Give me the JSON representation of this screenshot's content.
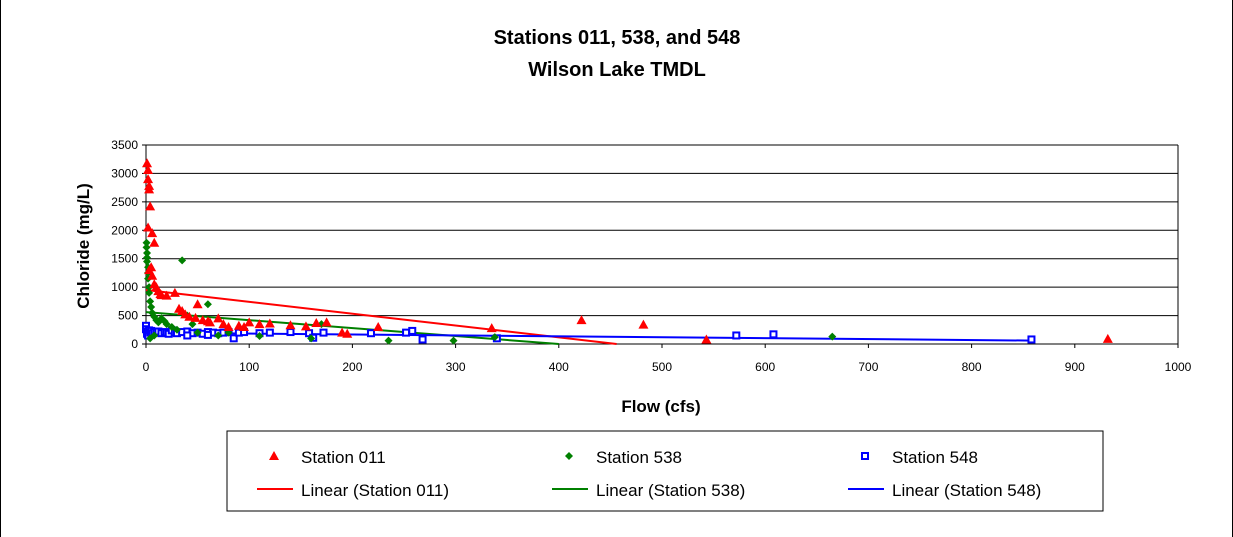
{
  "chart_data": {
    "type": "scatter",
    "title": "Stations 011, 538, and 548",
    "subtitle": "Wilson Lake TMDL",
    "xlabel": "Flow (cfs)",
    "ylabel": "Chloride (mg/L)",
    "xlim": [
      0,
      1000
    ],
    "ylim": [
      0,
      3500
    ],
    "x_ticks": [
      0,
      100,
      200,
      300,
      400,
      500,
      600,
      700,
      800,
      900,
      1000
    ],
    "y_ticks": [
      0,
      500,
      1000,
      1500,
      2000,
      2500,
      3000,
      3500
    ],
    "grid": "horizontal",
    "legend_position": "bottom",
    "series": [
      {
        "name": "Station 011",
        "marker": "triangle",
        "color": "#ff0000",
        "points": [
          [
            1,
            3180
          ],
          [
            2,
            3060
          ],
          [
            2,
            2900
          ],
          [
            3,
            2780
          ],
          [
            3,
            2720
          ],
          [
            4,
            2420
          ],
          [
            2,
            2050
          ],
          [
            6,
            1950
          ],
          [
            8,
            1780
          ],
          [
            5,
            1350
          ],
          [
            3,
            1300
          ],
          [
            6,
            1200
          ],
          [
            8,
            1050
          ],
          [
            10,
            1000
          ],
          [
            12,
            930
          ],
          [
            14,
            880
          ],
          [
            15,
            860
          ],
          [
            20,
            850
          ],
          [
            28,
            900
          ],
          [
            32,
            620
          ],
          [
            35,
            580
          ],
          [
            38,
            520
          ],
          [
            42,
            480
          ],
          [
            48,
            460
          ],
          [
            50,
            700
          ],
          [
            55,
            420
          ],
          [
            60,
            400
          ],
          [
            62,
            380
          ],
          [
            70,
            450
          ],
          [
            75,
            350
          ],
          [
            80,
            300
          ],
          [
            90,
            320
          ],
          [
            95,
            300
          ],
          [
            100,
            380
          ],
          [
            110,
            350
          ],
          [
            120,
            360
          ],
          [
            140,
            330
          ],
          [
            155,
            310
          ],
          [
            165,
            370
          ],
          [
            175,
            380
          ],
          [
            190,
            200
          ],
          [
            195,
            180
          ],
          [
            225,
            300
          ],
          [
            335,
            280
          ],
          [
            422,
            420
          ],
          [
            482,
            340
          ],
          [
            543,
            80
          ],
          [
            932,
            90
          ]
        ]
      },
      {
        "name": "Station 538",
        "marker": "diamond",
        "color": "#008000",
        "points": [
          [
            0.5,
            1780
          ],
          [
            0.5,
            1700
          ],
          [
            1,
            1600
          ],
          [
            1,
            1520
          ],
          [
            1,
            1450
          ],
          [
            2,
            1350
          ],
          [
            2,
            1250
          ],
          [
            2,
            1150
          ],
          [
            3,
            1000
          ],
          [
            3,
            900
          ],
          [
            4,
            750
          ],
          [
            5,
            650
          ],
          [
            6,
            550
          ],
          [
            8,
            480
          ],
          [
            10,
            420
          ],
          [
            12,
            380
          ],
          [
            15,
            450
          ],
          [
            18,
            400
          ],
          [
            20,
            350
          ],
          [
            25,
            300
          ],
          [
            30,
            250
          ],
          [
            35,
            1470
          ],
          [
            40,
            500
          ],
          [
            45,
            350
          ],
          [
            50,
            200
          ],
          [
            60,
            700
          ],
          [
            70,
            150
          ],
          [
            80,
            200
          ],
          [
            110,
            140
          ],
          [
            160,
            100
          ],
          [
            170,
            350
          ],
          [
            235,
            60
          ],
          [
            298,
            60
          ],
          [
            338,
            120
          ],
          [
            665,
            130
          ],
          [
            4,
            100
          ],
          [
            8,
            150
          ]
        ]
      },
      {
        "name": "Station 548",
        "marker": "square",
        "color": "#0000ff",
        "points": [
          [
            0,
            320
          ],
          [
            0,
            260
          ],
          [
            1,
            220
          ],
          [
            1,
            180
          ],
          [
            2,
            150
          ],
          [
            3,
            240
          ],
          [
            4,
            200
          ],
          [
            5,
            230
          ],
          [
            6,
            190
          ],
          [
            8,
            210
          ],
          [
            10,
            200
          ],
          [
            12,
            220
          ],
          [
            15,
            190
          ],
          [
            18,
            210
          ],
          [
            20,
            200
          ],
          [
            22,
            180
          ],
          [
            25,
            240
          ],
          [
            28,
            200
          ],
          [
            30,
            190
          ],
          [
            35,
            210
          ],
          [
            40,
            220
          ],
          [
            45,
            190
          ],
          [
            50,
            200
          ],
          [
            55,
            180
          ],
          [
            60,
            210
          ],
          [
            65,
            200
          ],
          [
            70,
            190
          ],
          [
            75,
            200
          ],
          [
            80,
            210
          ],
          [
            85,
            100
          ],
          [
            90,
            200
          ],
          [
            95,
            210
          ],
          [
            110,
            190
          ],
          [
            120,
            200
          ],
          [
            140,
            210
          ],
          [
            158,
            190
          ],
          [
            162,
            110
          ],
          [
            172,
            200
          ],
          [
            218,
            190
          ],
          [
            252,
            200
          ],
          [
            258,
            230
          ],
          [
            268,
            80
          ],
          [
            340,
            100
          ],
          [
            572,
            150
          ],
          [
            608,
            170
          ],
          [
            858,
            80
          ],
          [
            40,
            150
          ],
          [
            60,
            160
          ]
        ]
      }
    ],
    "trendlines": [
      {
        "name": "Linear (Station 011)",
        "color": "#ff0000",
        "x": [
          0,
          456
        ],
        "y": [
          950,
          0
        ]
      },
      {
        "name": "Linear (Station 538)",
        "color": "#008000",
        "x": [
          0,
          400
        ],
        "y": [
          560,
          0
        ]
      },
      {
        "name": "Linear (Station 548)",
        "color": "#0000ff",
        "x": [
          0,
          860
        ],
        "y": [
          200,
          60
        ]
      }
    ],
    "legend": [
      {
        "label": "Station 011",
        "kind": "marker",
        "marker": "triangle",
        "color": "#ff0000"
      },
      {
        "label": "Station 538",
        "kind": "marker",
        "marker": "diamond",
        "color": "#008000"
      },
      {
        "label": "Station 548",
        "kind": "marker",
        "marker": "square",
        "color": "#0000ff"
      },
      {
        "label": "Linear (Station 011)",
        "kind": "line",
        "color": "#ff0000"
      },
      {
        "label": "Linear (Station 538)",
        "kind": "line",
        "color": "#008000"
      },
      {
        "label": "Linear (Station 548)",
        "kind": "line",
        "color": "#0000ff"
      }
    ]
  }
}
